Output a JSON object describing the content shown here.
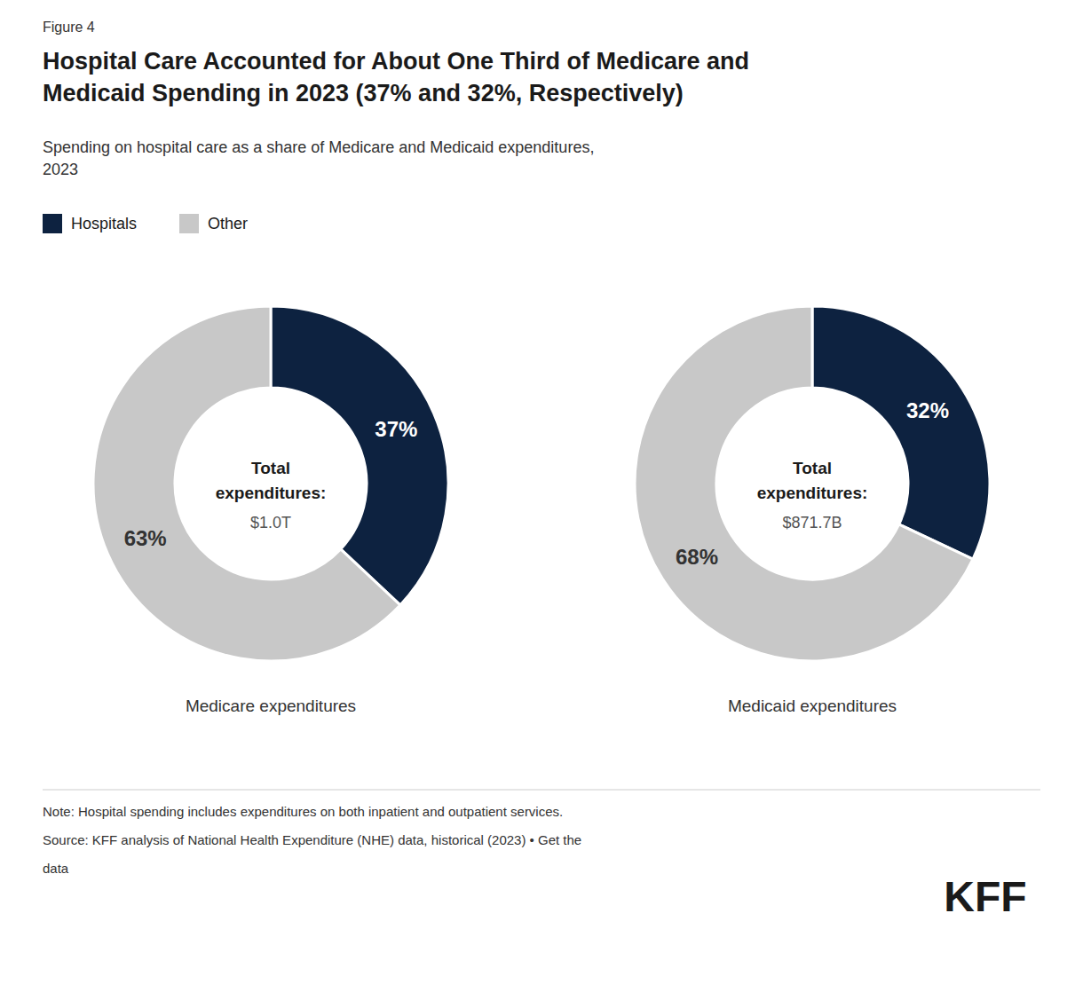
{
  "title": "Hospital Care Accounted for About One Third of Medicare and\nMedicaid Spending in 2023 (37% and 32%, Respectively)",
  "subtitle": "Spending on hospital care as a share of Medicare and Medicaid expenditures,\n2023",
  "annotations": [
    "Figure 4",
    "Note: Hospital spending includes expenditures on both inpatient and outpatient services.",
    "Source: KFF analysis of National Health Expenditure (NHE) data, historical (2023) • Get the",
    "data",
    "KFF"
  ],
  "legend": "top-left",
  "chart_data": [
    {
      "type": "pie",
      "title": "Medicare expenditures",
      "categories": [
        "Hospitals",
        "Other"
      ],
      "values": [
        37,
        63
      ],
      "value_labels": [
        "37%",
        "63%"
      ],
      "colors": [
        "#0d2240",
        "#c8c8c8"
      ],
      "data_labels": true,
      "annotations": [
        "Total",
        "expenditures:",
        "$1.0T"
      ]
    },
    {
      "type": "pie",
      "title": "Medicaid expenditures",
      "categories": [
        "Hospitals",
        "Other"
      ],
      "values": [
        32,
        68
      ],
      "value_labels": [
        "32%",
        "68%"
      ],
      "colors": [
        "#0d2240",
        "#c8c8c8"
      ],
      "data_labels": true,
      "annotations": [
        "Total",
        "expenditures:",
        "$871.7B"
      ]
    }
  ]
}
